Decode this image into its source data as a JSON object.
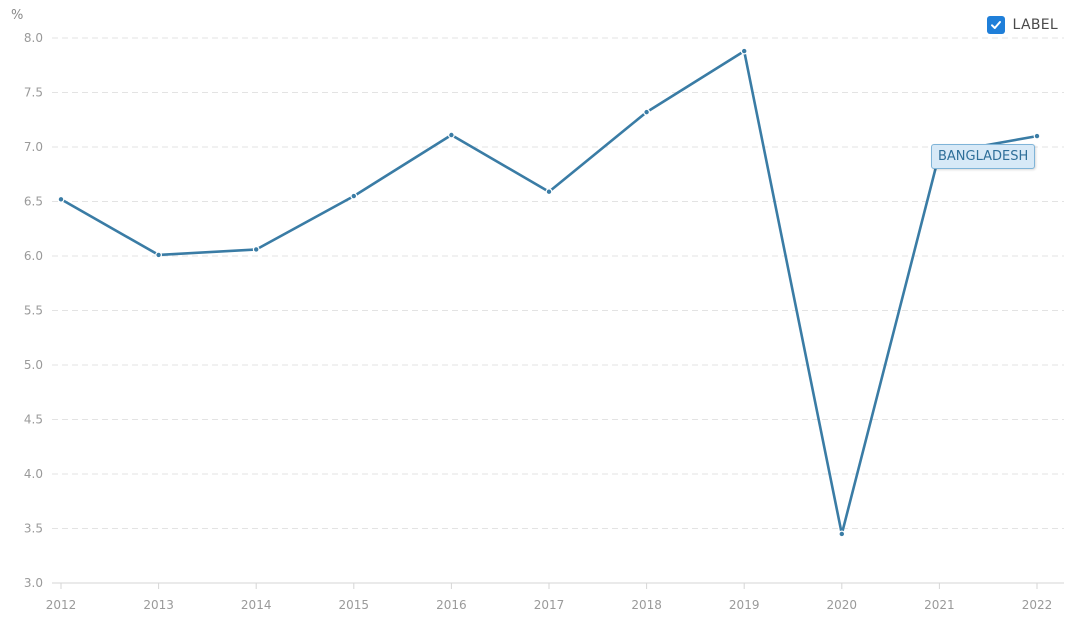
{
  "legend": {
    "label": "LABEL",
    "checked": true,
    "checkbox_color": "#1f7fd9"
  },
  "series_tag": {
    "label": "BANGLADESH"
  },
  "colors": {
    "line": "#3a7ca5",
    "grid": "#e3e3e3",
    "axis_text": "#9a9a9a"
  },
  "chart_data": {
    "type": "line",
    "title": "",
    "ylabel": "%",
    "xlabel": "",
    "x": [
      "2012",
      "2013",
      "2014",
      "2015",
      "2016",
      "2017",
      "2018",
      "2019",
      "2020",
      "2021",
      "2022"
    ],
    "series": [
      {
        "name": "BANGLADESH",
        "values": [
          6.52,
          6.01,
          6.06,
          6.55,
          7.11,
          6.59,
          7.32,
          7.88,
          3.45,
          6.94,
          7.1
        ]
      }
    ],
    "ylim": [
      3.0,
      8.0
    ],
    "yticks": [
      "3.0",
      "3.5",
      "4.0",
      "4.5",
      "5.0",
      "5.5",
      "6.0",
      "6.5",
      "7.0",
      "7.5",
      "8.0"
    ],
    "grid": true,
    "legend_position": "top-right"
  }
}
